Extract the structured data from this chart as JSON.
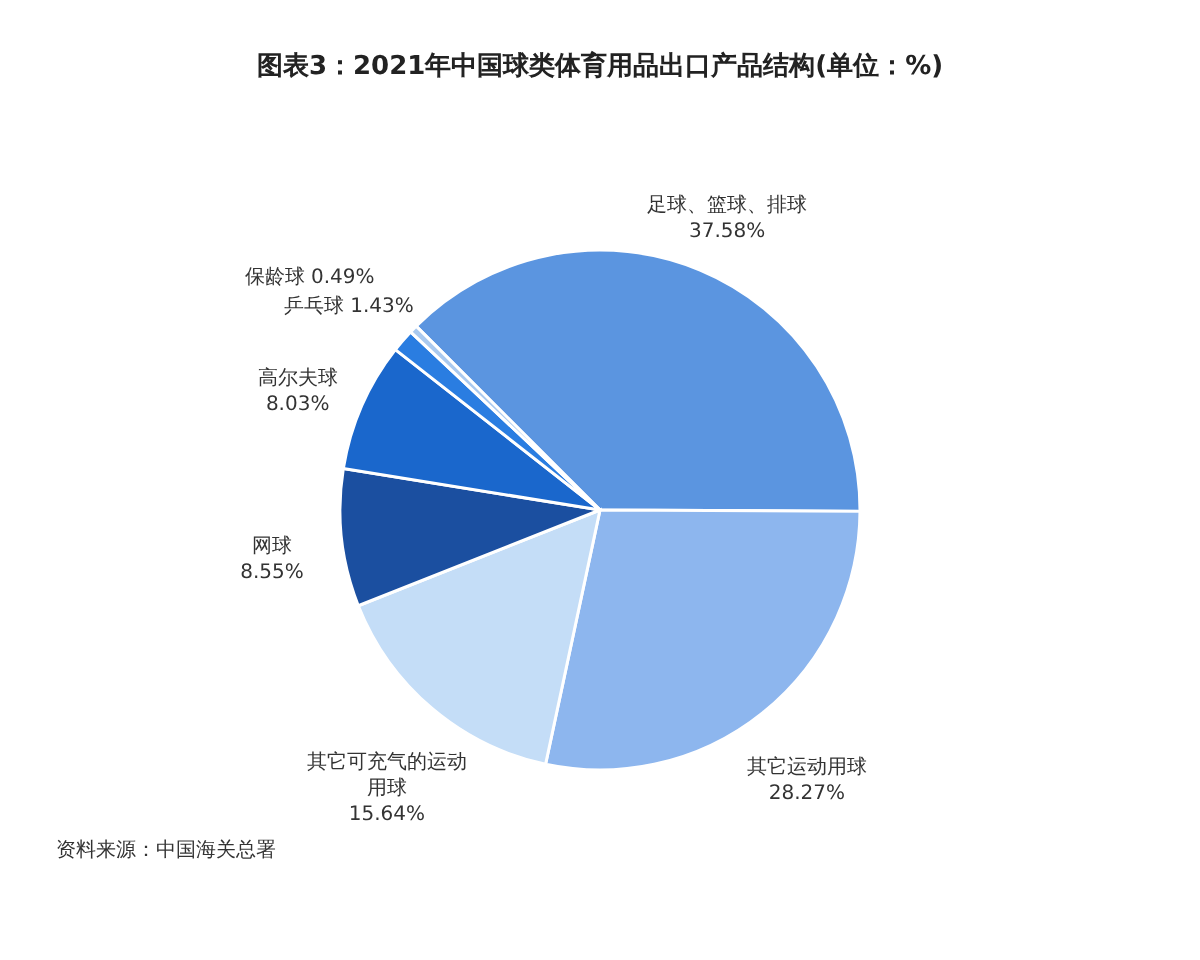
{
  "chart_data": {
    "type": "pie",
    "title": "图表3：2021年中国球类体育用品出口产品结构(单位：%)",
    "categories": [
      "足球、篮球、排球",
      "其它运动用球",
      "其它可充气的运动用球",
      "网球",
      "高尔夫球",
      "乒乓球",
      "保龄球"
    ],
    "values": [
      37.58,
      28.27,
      15.64,
      8.55,
      8.03,
      1.43,
      0.49
    ],
    "value_labels": [
      "37.58%",
      "28.27%",
      "15.64%",
      "8.55%",
      "8.03%",
      "1.43%",
      "0.49%"
    ],
    "colors": [
      "#5b95e0",
      "#8db6ee",
      "#c4ddf7",
      "#1b4fa0",
      "#1a67cc",
      "#2a7de1",
      "#a9c9ef"
    ],
    "annotations": [
      "资料来源：中国海关总署"
    ]
  }
}
